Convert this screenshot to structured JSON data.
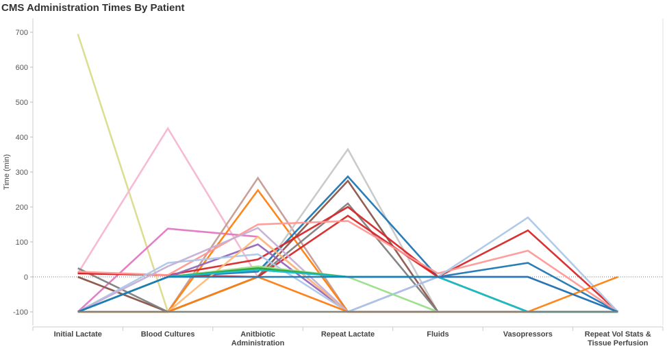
{
  "chart_data": {
    "type": "line",
    "title": "CMS Administration Times By Patient",
    "xlabel": "",
    "ylabel": "Time (min)",
    "ylim": [
      -120,
      740
    ],
    "yticks": [
      -100,
      0,
      100,
      200,
      300,
      400,
      500,
      600,
      700
    ],
    "reference_line": 0,
    "grid": false,
    "categories": [
      "Initial Lactate",
      "Blood Cultures",
      "Anitbiotic Administration",
      "Repeat Lactate",
      "Fluids",
      "Vasopressors",
      "Repeat Vol Stats & Tissue Perfusion"
    ],
    "series": [
      {
        "color": "#dbdb8d",
        "values": [
          695,
          -100,
          -100,
          -100,
          -100,
          -100,
          -100
        ]
      },
      {
        "color": "#f7b6d2",
        "values": [
          10,
          425,
          0,
          -100,
          -100,
          -100,
          -100
        ]
      },
      {
        "color": "#e377c2",
        "values": [
          -100,
          138,
          115,
          -100,
          -100,
          -100,
          -100
        ]
      },
      {
        "color": "#c49c94",
        "values": [
          0,
          -100,
          283,
          -100,
          -100,
          -100,
          -100
        ]
      },
      {
        "color": "#ff7f0e",
        "values": [
          -100,
          -100,
          248,
          -100,
          -100,
          -100,
          -100
        ]
      },
      {
        "color": "#c7c7c7",
        "values": [
          0,
          -100,
          0,
          365,
          -100,
          -100,
          -100
        ]
      },
      {
        "color": "#1f77b4",
        "values": [
          -100,
          0,
          15,
          287,
          0,
          40,
          -100
        ]
      },
      {
        "color": "#8c564b",
        "values": [
          0,
          -100,
          0,
          275,
          -100,
          -100,
          -100
        ]
      },
      {
        "color": "#7f7f7f",
        "values": [
          25,
          -100,
          0,
          210,
          -100,
          -100,
          -100
        ]
      },
      {
        "color": "#d62728",
        "values": [
          10,
          5,
          50,
          200,
          0,
          133,
          -100
        ]
      },
      {
        "color": "#d62728",
        "values": [
          10,
          5,
          0,
          175,
          0,
          -100,
          -100
        ]
      },
      {
        "color": "#ff9896",
        "values": [
          15,
          5,
          150,
          160,
          10,
          75,
          -100
        ]
      },
      {
        "color": "#9467bd",
        "values": [
          -100,
          0,
          93,
          -100,
          0,
          0,
          -100
        ]
      },
      {
        "color": "#aec7e8",
        "values": [
          -100,
          40,
          65,
          -100,
          0,
          170,
          -100
        ]
      },
      {
        "color": "#ffbb78",
        "values": [
          -100,
          -100,
          115,
          -100,
          -100,
          -100,
          -100
        ]
      },
      {
        "color": "#c5b0d5",
        "values": [
          -100,
          30,
          140,
          -100,
          -100,
          -100,
          -100
        ]
      },
      {
        "color": "#98df8a",
        "values": [
          -100,
          0,
          30,
          0,
          -100,
          -100,
          -100
        ]
      },
      {
        "color": "#2ca02c",
        "values": [
          -100,
          0,
          25,
          0,
          0,
          -100,
          -100
        ]
      },
      {
        "color": "#17becf",
        "values": [
          -100,
          0,
          20,
          0,
          0,
          -100,
          -100
        ]
      },
      {
        "color": "#ff7f0e",
        "values": [
          -100,
          -100,
          0,
          -100,
          -100,
          -100,
          0
        ]
      },
      {
        "color": "#1f77b4",
        "values": [
          -100,
          0,
          0,
          0,
          0,
          0,
          -100
        ]
      },
      {
        "color": "#7f7f7f",
        "values": [
          -100,
          -100,
          -100,
          -100,
          -100,
          -100,
          -100
        ]
      }
    ]
  }
}
